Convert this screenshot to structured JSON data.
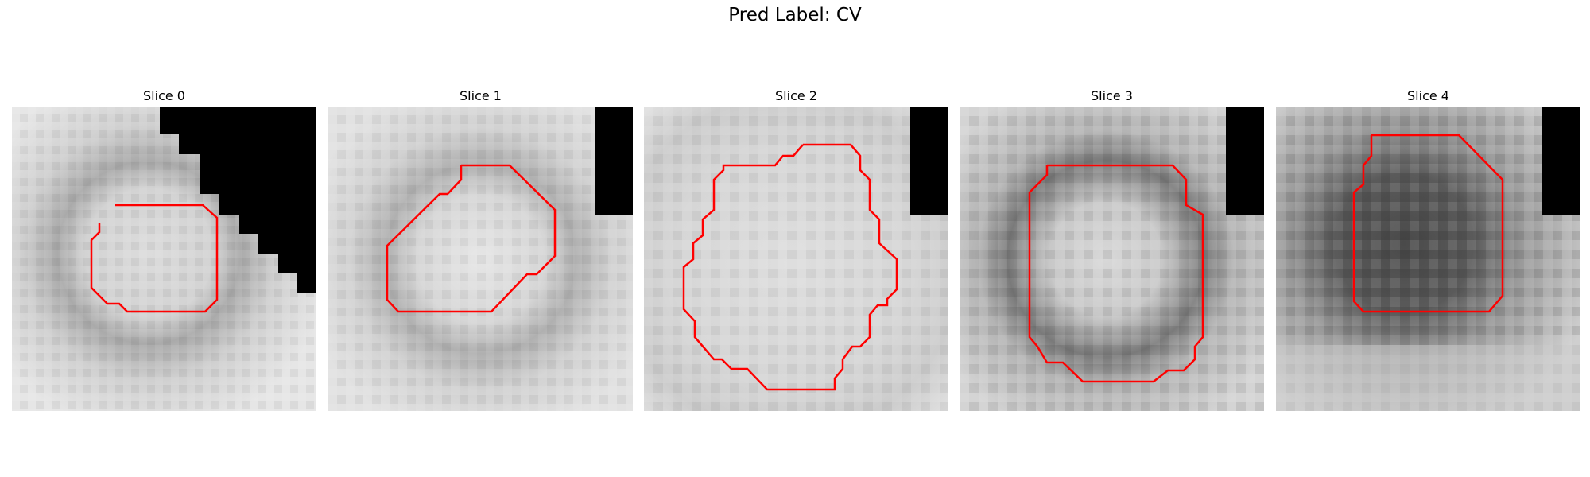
{
  "figure": {
    "title": "Pred Label: CV"
  },
  "panels": [
    {
      "title": "Slice 0"
    },
    {
      "title": "Slice 1"
    },
    {
      "title": "Slice 2"
    },
    {
      "title": "Slice 3"
    },
    {
      "title": "Slice 4"
    }
  ],
  "colors": {
    "contour": "#ff0000",
    "mask": "#000000",
    "background": "#ffffff"
  }
}
